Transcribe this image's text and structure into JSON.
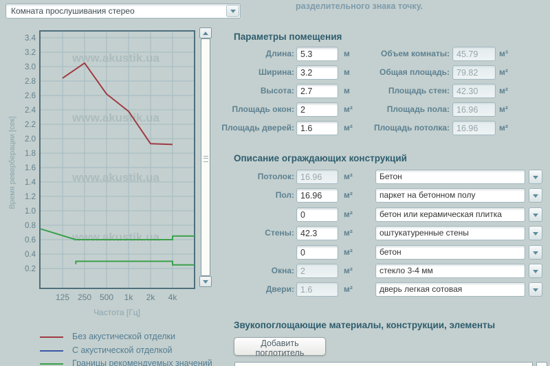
{
  "room_preset_select": {
    "value": "Комната прослушивания стерео"
  },
  "note": {
    "text": "разделительного знака точку."
  },
  "chart_data": {
    "type": "line",
    "xlabel": "Частота [Гц]",
    "ylabel": "Время реверберации [сек]",
    "x_scale": "log2",
    "x_range_hz": [
      62.5,
      8000
    ],
    "x_ticks": [
      {
        "f": 125,
        "label": "125"
      },
      {
        "f": 250,
        "label": "250"
      },
      {
        "f": 500,
        "label": "500"
      },
      {
        "f": 1000,
        "label": "1k"
      },
      {
        "f": 2000,
        "label": "2k"
      },
      {
        "f": 4000,
        "label": "4k"
      }
    ],
    "y_axis": {
      "min": 0.2,
      "max": 3.4,
      "step": 0.2
    },
    "y_ticks": [
      0.2,
      0.4,
      0.6,
      0.8,
      1.0,
      1.2,
      1.4,
      1.6,
      1.8,
      2.0,
      2.2,
      2.4,
      2.6,
      2.8,
      3.0,
      3.2,
      3.4
    ],
    "grid": true,
    "watermark": {
      "text": "www.akustik.ua"
    },
    "series": [
      {
        "name": "Без акустической отделки",
        "color": "#9e3b41",
        "lines": [
          [
            [
              125,
              2.84
            ],
            [
              250,
              3.05
            ],
            [
              500,
              2.62
            ],
            [
              1000,
              2.38
            ],
            [
              2000,
              1.93
            ],
            [
              4000,
              1.92
            ]
          ]
        ]
      },
      {
        "name": "С акустической отделкой",
        "color": "#3a57a7",
        "lines": []
      },
      {
        "name": "Границы рекомендуемых значений",
        "color": "#3aa04a",
        "lines": [
          [
            [
              62.5,
              0.75
            ],
            [
              190,
              0.6
            ],
            [
              4000,
              0.6
            ],
            [
              4000,
              0.65
            ],
            [
              8000,
              0.65
            ]
          ],
          [
            [
              190,
              0.26
            ],
            [
              190,
              0.3
            ],
            [
              4000,
              0.3
            ],
            [
              4000,
              0.25
            ],
            [
              8000,
              0.25
            ]
          ]
        ]
      }
    ]
  },
  "legend": {
    "items": [
      {
        "label": "Без акустической отделки",
        "color": "#9e3b41"
      },
      {
        "label": "С акустической отделкой",
        "color": "#3a57a7"
      },
      {
        "label": "Границы рекомендуемых значений",
        "color": "#3aa04a"
      }
    ]
  },
  "room_params": {
    "title": "Параметры помещения",
    "inputs": [
      {
        "name": "length",
        "label": "Длина:",
        "value": "5.3",
        "unit": "м",
        "disabled": false
      },
      {
        "name": "width",
        "label": "Ширина:",
        "value": "3.2",
        "unit": "м",
        "disabled": false
      },
      {
        "name": "height",
        "label": "Высота:",
        "value": "2.7",
        "unit": "м",
        "disabled": false
      },
      {
        "name": "windows-area",
        "label": "Площадь окон:",
        "value": "2",
        "unit": "м²",
        "disabled": false
      },
      {
        "name": "doors-area",
        "label": "Площадь дверей:",
        "value": "1.6",
        "unit": "м²",
        "disabled": false
      }
    ],
    "computed": [
      {
        "name": "room-volume",
        "label": "Объем комнаты:",
        "value": "45.79",
        "unit": "м³",
        "disabled": true
      },
      {
        "name": "total-area",
        "label": "Общая площадь:",
        "value": "79.82",
        "unit": "м²",
        "disabled": true
      },
      {
        "name": "walls-area",
        "label": "Площадь стен:",
        "value": "42.30",
        "unit": "м²",
        "disabled": true
      },
      {
        "name": "floor-area",
        "label": "Площадь пола:",
        "value": "16.96",
        "unit": "м²",
        "disabled": true
      },
      {
        "name": "ceiling-area",
        "label": "Площадь потолка:",
        "value": "16.96",
        "unit": "м²",
        "disabled": true
      }
    ]
  },
  "constructions": {
    "title": "Описание ограждающих конструкций",
    "rows": [
      {
        "name": "ceiling",
        "label": "Потолок:",
        "area": "16.96",
        "unit": "м²",
        "disabled": true,
        "material": "Бетон"
      },
      {
        "name": "floor",
        "label": "Пол:",
        "area": "16.96",
        "unit": "м²",
        "disabled": false,
        "material": "паркет на бетонном полу"
      },
      {
        "name": "floor-extra",
        "label": "",
        "area": "0",
        "unit": "м²",
        "disabled": false,
        "material": "бетон или керамическая плитка"
      },
      {
        "name": "walls",
        "label": "Стены:",
        "area": "42.3",
        "unit": "м²",
        "disabled": false,
        "material": "оштукатуренные стены"
      },
      {
        "name": "walls-extra",
        "label": "",
        "area": "0",
        "unit": "м²",
        "disabled": false,
        "material": "бетон"
      },
      {
        "name": "windows",
        "label": "Окна:",
        "area": "2",
        "unit": "м²",
        "disabled": true,
        "material": "стекло 3-4 мм"
      },
      {
        "name": "doors",
        "label": "Двери:",
        "area": "1.6",
        "unit": "м²",
        "disabled": true,
        "material": "дверь легкая сотовая"
      }
    ]
  },
  "absorbers": {
    "title": "Звукопоглощающие материалы, конструкции, элементы",
    "add_button": "Добавить поглотитель"
  }
}
